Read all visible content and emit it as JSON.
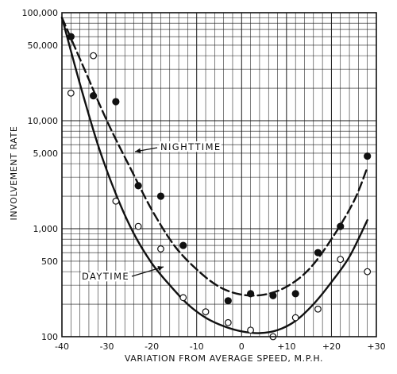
{
  "chart_data": {
    "type": "scatter",
    "title": "",
    "xlabel": "VARIATION FROM AVERAGE SPEED, M.P.H.",
    "ylabel": "INVOLVEMENT RATE",
    "xlim": [
      -40,
      30
    ],
    "ylim": [
      100,
      100000
    ],
    "yscale": "log",
    "grid": true,
    "x_ticks": [
      {
        "value": -40,
        "label": "-40"
      },
      {
        "value": -30,
        "label": "-30"
      },
      {
        "value": -20,
        "label": "-20"
      },
      {
        "value": -10,
        "label": "-10"
      },
      {
        "value": 0,
        "label": "0"
      },
      {
        "value": 10,
        "label": "+10"
      },
      {
        "value": 20,
        "label": "+20"
      },
      {
        "value": 30,
        "label": "+30"
      }
    ],
    "y_ticks": [
      {
        "value": 100,
        "label": "100"
      },
      {
        "value": 500,
        "label": "500"
      },
      {
        "value": 1000,
        "label": "1,000"
      },
      {
        "value": 5000,
        "label": "5,000"
      },
      {
        "value": 10000,
        "label": "10,000"
      },
      {
        "value": 50000,
        "label": "50,000"
      },
      {
        "value": 100000,
        "label": "100,000"
      }
    ],
    "series": [
      {
        "name": "NIGHTTIME",
        "marker": "filled-circle",
        "line_style": "dashed",
        "points": [
          {
            "x": -38,
            "y": 60000
          },
          {
            "x": -33,
            "y": 17000
          },
          {
            "x": -28,
            "y": 15000
          },
          {
            "x": -23,
            "y": 2500
          },
          {
            "x": -18,
            "y": 2000
          },
          {
            "x": -13,
            "y": 700
          },
          {
            "x": -3,
            "y": 215
          },
          {
            "x": 2,
            "y": 250
          },
          {
            "x": 7,
            "y": 240
          },
          {
            "x": 12,
            "y": 250
          },
          {
            "x": 17,
            "y": 600
          },
          {
            "x": 22,
            "y": 1050
          },
          {
            "x": 28,
            "y": 4700
          }
        ],
        "curve": [
          {
            "x": -40,
            "y": 90000
          },
          {
            "x": -35,
            "y": 30000
          },
          {
            "x": -30,
            "y": 10000
          },
          {
            "x": -25,
            "y": 3800
          },
          {
            "x": -20,
            "y": 1500
          },
          {
            "x": -15,
            "y": 700
          },
          {
            "x": -10,
            "y": 420
          },
          {
            "x": -5,
            "y": 290
          },
          {
            "x": 0,
            "y": 245
          },
          {
            "x": 5,
            "y": 245
          },
          {
            "x": 10,
            "y": 290
          },
          {
            "x": 15,
            "y": 420
          },
          {
            "x": 20,
            "y": 800
          },
          {
            "x": 25,
            "y": 1800
          },
          {
            "x": 28,
            "y": 3700
          }
        ]
      },
      {
        "name": "DAYTIME",
        "marker": "open-circle",
        "line_style": "solid",
        "points": [
          {
            "x": -38,
            "y": 18000
          },
          {
            "x": -33,
            "y": 40000
          },
          {
            "x": -28,
            "y": 1800
          },
          {
            "x": -23,
            "y": 1050
          },
          {
            "x": -18,
            "y": 650
          },
          {
            "x": -13,
            "y": 230
          },
          {
            "x": -8,
            "y": 170
          },
          {
            "x": -3,
            "y": 135
          },
          {
            "x": 2,
            "y": 115
          },
          {
            "x": 7,
            "y": 100
          },
          {
            "x": 12,
            "y": 150
          },
          {
            "x": 17,
            "y": 180
          },
          {
            "x": 22,
            "y": 520
          },
          {
            "x": 28,
            "y": 400
          }
        ],
        "curve": [
          {
            "x": -40,
            "y": 90000
          },
          {
            "x": -36,
            "y": 22000
          },
          {
            "x": -32,
            "y": 6000
          },
          {
            "x": -28,
            "y": 2100
          },
          {
            "x": -24,
            "y": 900
          },
          {
            "x": -20,
            "y": 480
          },
          {
            "x": -16,
            "y": 300
          },
          {
            "x": -12,
            "y": 200
          },
          {
            "x": -8,
            "y": 150
          },
          {
            "x": -4,
            "y": 125
          },
          {
            "x": 0,
            "y": 112
          },
          {
            "x": 4,
            "y": 108
          },
          {
            "x": 8,
            "y": 115
          },
          {
            "x": 12,
            "y": 140
          },
          {
            "x": 16,
            "y": 200
          },
          {
            "x": 20,
            "y": 320
          },
          {
            "x": 24,
            "y": 550
          },
          {
            "x": 28,
            "y": 1200
          }
        ]
      }
    ],
    "annotations": [
      {
        "text": "NIGHTTIME",
        "series": "NIGHTTIME"
      },
      {
        "text": "DAYTIME",
        "series": "DAYTIME"
      }
    ]
  }
}
